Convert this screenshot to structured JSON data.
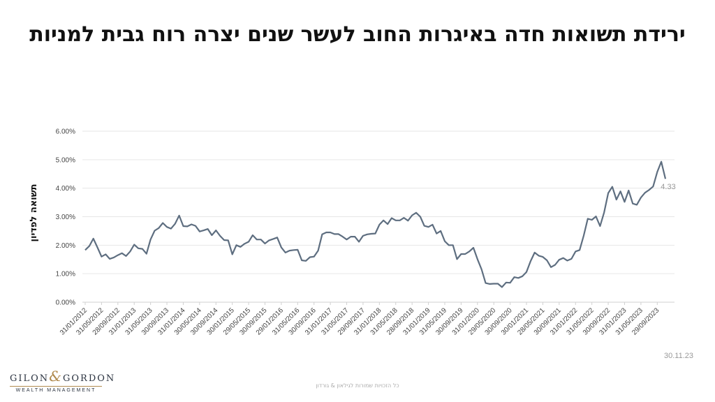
{
  "title": "ירידת תשואות חדה באיגרות החוב לעשר שנים יצרה רוח גבית למניות",
  "date_stamp": "30.11.23",
  "copyright": "כל הזכויות שמורות לגילאון & גורדון",
  "logo": {
    "brand_left": "GILON",
    "brand_amp": "&",
    "brand_right": "GORDON",
    "tagline": "WEALTH MANAGEMENT"
  },
  "colors": {
    "line": "#5e6e80",
    "grid": "#e6e6e6"
  },
  "chart_data": {
    "type": "line",
    "title": "ירידת תשואות חדה באיגרות החוב לעשר שנים יצרה רוח גבית למניות",
    "ylabel": "תשואה לפדיון",
    "xlabel": "",
    "ylim": [
      0,
      6
    ],
    "y_ticks": [
      "0.00%",
      "1.00%",
      "2.00%",
      "3.00%",
      "4.00%",
      "5.00%",
      "6.00%"
    ],
    "x_tick_labels": [
      "31/01/2012",
      "31/05/2012",
      "28/09/2012",
      "31/01/2013",
      "31/05/2013",
      "30/09/2013",
      "31/01/2014",
      "30/05/2014",
      "30/09/2014",
      "30/01/2015",
      "29/05/2015",
      "30/09/2015",
      "29/01/2016",
      "31/05/2016",
      "30/09/2016",
      "31/01/2017",
      "31/05/2017",
      "29/09/2017",
      "31/01/2018",
      "31/05/2018",
      "28/09/2018",
      "31/01/2019",
      "31/05/2019",
      "30/09/2019",
      "31/01/2020",
      "29/05/2020",
      "30/09/2020",
      "30/01/2021",
      "28/05/2021",
      "30/09/2021",
      "31/01/2022",
      "31/05/2022",
      "30/09/2022",
      "31/01/2023",
      "31/05/2023",
      "29/09/2023"
    ],
    "last_value_label": "4.33",
    "series": [
      {
        "values": [
          1.83,
          1.97,
          2.23,
          1.92,
          1.6,
          1.68,
          1.52,
          1.57,
          1.65,
          1.72,
          1.62,
          1.78,
          2.02,
          1.89,
          1.87,
          1.7,
          2.2,
          2.51,
          2.6,
          2.78,
          2.64,
          2.58,
          2.75,
          3.04,
          2.67,
          2.66,
          2.73,
          2.68,
          2.48,
          2.52,
          2.57,
          2.35,
          2.52,
          2.33,
          2.18,
          2.17,
          1.68,
          2.0,
          1.94,
          2.05,
          2.12,
          2.35,
          2.2,
          2.2,
          2.06,
          2.17,
          2.22,
          2.27,
          1.92,
          1.74,
          1.81,
          1.83,
          1.84,
          1.47,
          1.45,
          1.58,
          1.6,
          1.81,
          2.38,
          2.45,
          2.45,
          2.39,
          2.39,
          2.3,
          2.2,
          2.3,
          2.3,
          2.12,
          2.33,
          2.38,
          2.4,
          2.41,
          2.72,
          2.87,
          2.74,
          2.95,
          2.87,
          2.87,
          2.96,
          2.86,
          3.05,
          3.14,
          3.0,
          2.68,
          2.64,
          2.72,
          2.41,
          2.5,
          2.14,
          2.0,
          2.0,
          1.51,
          1.69,
          1.69,
          1.78,
          1.91,
          1.51,
          1.15,
          0.67,
          0.64,
          0.65,
          0.65,
          0.53,
          0.69,
          0.68,
          0.88,
          0.85,
          0.91,
          1.06,
          1.44,
          1.74,
          1.63,
          1.59,
          1.47,
          1.23,
          1.31,
          1.49,
          1.55,
          1.46,
          1.52,
          1.78,
          1.83,
          2.34,
          2.93,
          2.89,
          3.01,
          2.67,
          3.15,
          3.83,
          4.05,
          3.6,
          3.89,
          3.52,
          3.92,
          3.46,
          3.42,
          3.67,
          3.84,
          3.94,
          4.06,
          4.57,
          4.93,
          4.33
        ]
      }
    ]
  }
}
